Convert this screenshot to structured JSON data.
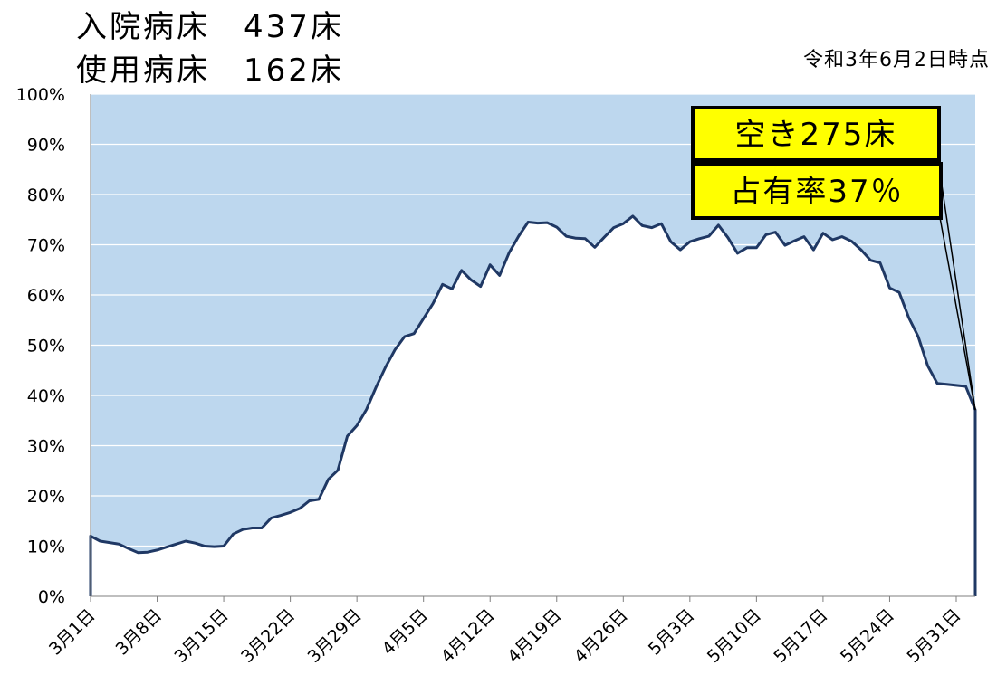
{
  "header": {
    "line1": "入院病床　437床",
    "line2": "使用病床　162床",
    "as_of": "令和3年6月2日時点"
  },
  "callouts": {
    "available": "空き275床",
    "occupancy": "占有率37％"
  },
  "colors": {
    "capacity_fill": "#bdd7ee",
    "line": "#1f3864",
    "callout_fill": "#ffff00"
  },
  "chart_data": {
    "type": "area",
    "title": "",
    "xlabel": "",
    "ylabel": "",
    "ylim": [
      0,
      100
    ],
    "y_ticks": [
      "0%",
      "10%",
      "20%",
      "30%",
      "40%",
      "50%",
      "60%",
      "70%",
      "80%",
      "90%",
      "100%"
    ],
    "x_ticks": [
      "3月1日",
      "3月8日",
      "3月15日",
      "3月22日",
      "3月29日",
      "4月5日",
      "4月12日",
      "4月19日",
      "4月26日",
      "5月3日",
      "5月10日",
      "5月17日",
      "5月24日",
      "5月31日"
    ],
    "grid": true,
    "start_date": "3月1日",
    "series": [
      {
        "values": [
          12.0,
          11.0,
          10.7,
          10.4,
          9.5,
          8.7,
          8.8,
          9.2,
          9.8,
          10.4,
          11.0,
          10.6,
          10.0,
          9.9,
          10.0,
          12.4,
          13.3,
          13.6,
          13.6,
          15.6,
          16.1,
          16.7,
          17.5,
          19.0,
          19.3,
          23.3,
          25.1,
          31.9,
          34.0,
          37.2,
          41.6,
          45.6,
          49.1,
          51.7,
          52.3,
          55.3,
          58.3,
          62.1,
          61.2,
          64.9,
          63.0,
          61.7,
          66.0,
          63.9,
          68.4,
          71.7,
          74.5,
          74.3,
          74.4,
          73.5,
          71.7,
          71.3,
          71.2,
          69.5,
          71.5,
          73.4,
          74.2,
          75.7,
          73.8,
          73.4,
          74.2,
          70.6,
          69.0,
          70.6,
          71.2,
          71.7,
          73.9,
          71.4,
          68.3,
          69.4,
          69.4,
          72.0,
          72.5,
          69.9,
          70.8,
          71.6,
          69.0,
          72.3,
          71.0,
          71.6,
          70.7,
          69.0,
          66.9,
          66.4,
          61.4,
          60.5,
          55.5,
          51.7,
          45.9,
          42.4,
          42.2,
          42.0,
          41.8,
          37.1
        ]
      }
    ]
  }
}
